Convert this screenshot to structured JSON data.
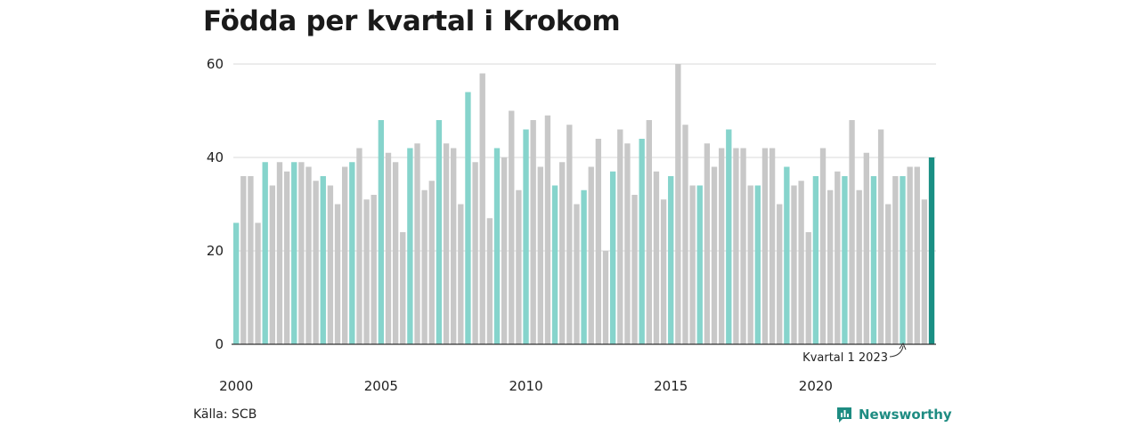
{
  "chart_data": {
    "type": "bar",
    "title": "Födda per kvartal i Krokom",
    "x_tick_labels": [
      "2000",
      "2005",
      "2010",
      "2015",
      "2020"
    ],
    "y_ticks": [
      0,
      20,
      40,
      60
    ],
    "ylim": [
      0,
      60
    ],
    "grid": true,
    "start_year": 2000,
    "values": [
      26,
      36,
      36,
      26,
      39,
      34,
      39,
      37,
      39,
      39,
      38,
      35,
      36,
      34,
      30,
      38,
      39,
      42,
      31,
      32,
      48,
      41,
      39,
      24,
      42,
      43,
      33,
      35,
      48,
      43,
      42,
      30,
      54,
      39,
      58,
      27,
      42,
      40,
      50,
      33,
      46,
      48,
      38,
      49,
      34,
      39,
      47,
      30,
      33,
      38,
      44,
      20,
      37,
      46,
      43,
      32,
      44,
      48,
      37,
      31,
      36,
      60,
      47,
      34,
      34,
      43,
      38,
      42,
      46,
      42,
      42,
      34,
      34,
      42,
      42,
      30,
      38,
      34,
      35,
      24,
      36,
      42,
      33,
      37,
      36,
      48,
      33,
      41,
      36,
      46,
      30,
      36,
      36,
      38,
      38,
      31,
      40
    ],
    "colors": {
      "q1": "#86d4cc",
      "other": "#c8c8c8",
      "latest": "#1a8f84"
    },
    "annotation": "Kvartal 1 2023"
  },
  "source_label": "Källa: SCB",
  "brand": {
    "name": "Newsworthy",
    "icon": "newsworthy-logo-icon"
  }
}
